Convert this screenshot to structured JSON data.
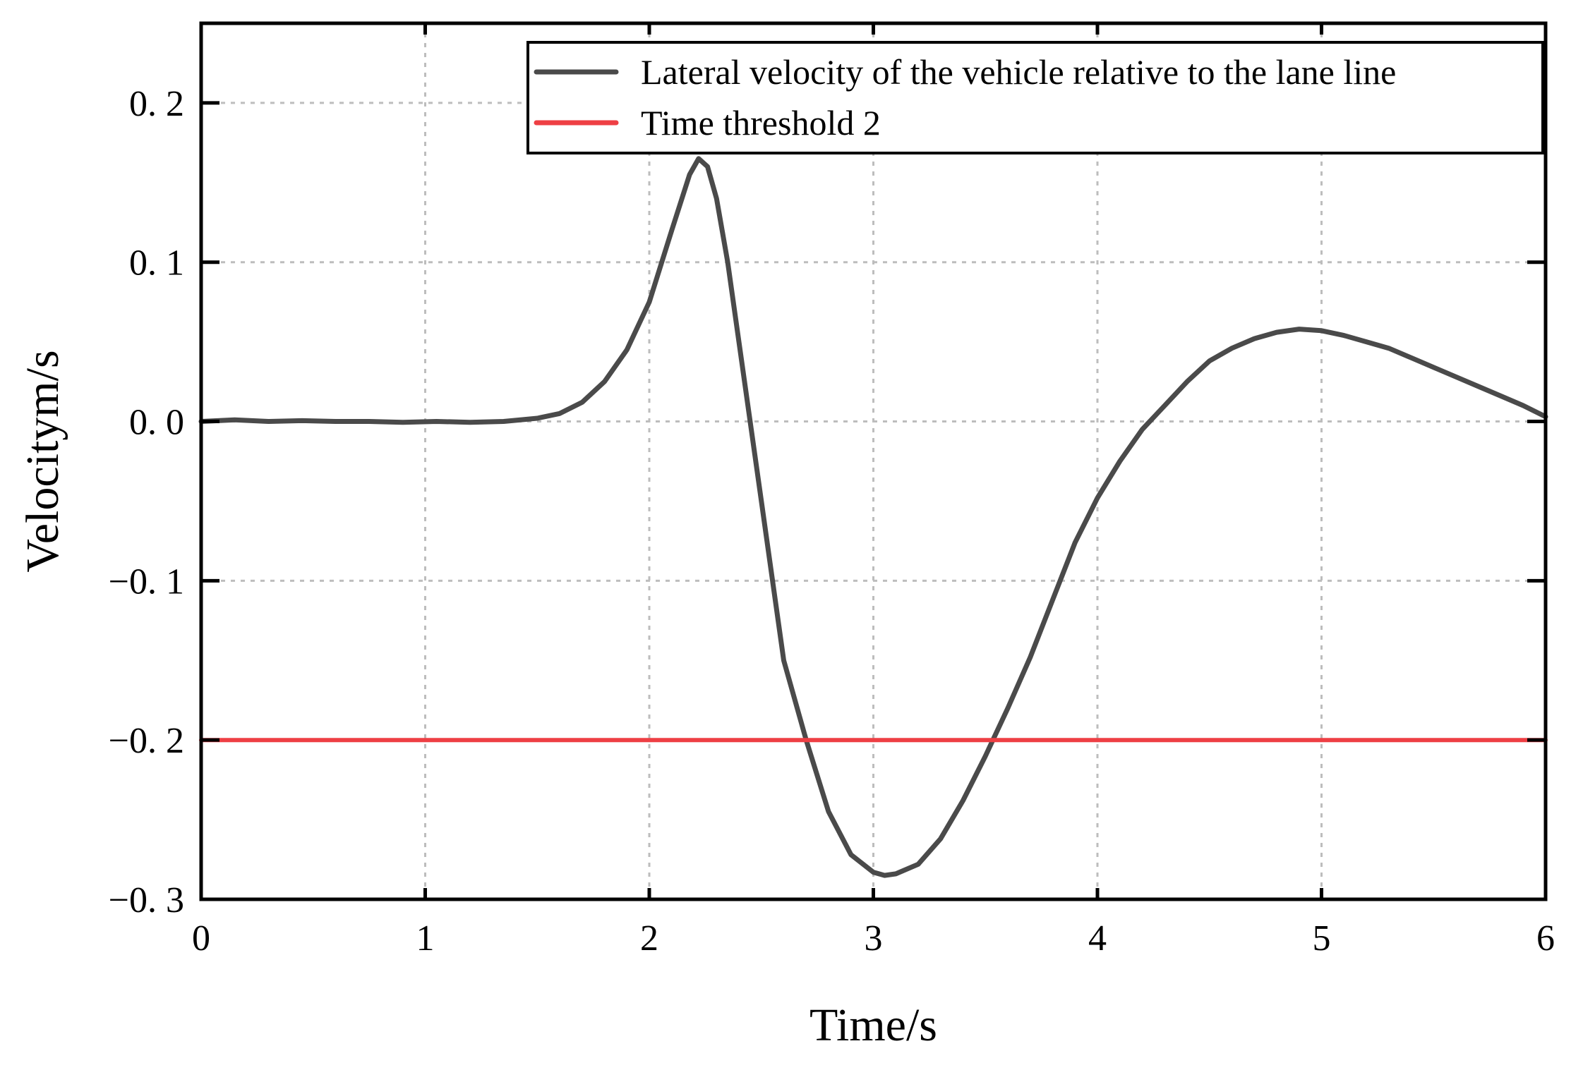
{
  "chart_data": {
    "type": "line",
    "title": "",
    "xlabel": "Time/s",
    "ylabel": "Velocitym/s",
    "xlim": [
      0,
      6
    ],
    "ylim": [
      -0.3,
      0.25
    ],
    "xticks": [
      0,
      1,
      2,
      3,
      4,
      5,
      6
    ],
    "xtick_labels": [
      "0",
      "1",
      "2",
      "3",
      "4",
      "5",
      "6"
    ],
    "yticks": [
      -0.3,
      -0.2,
      -0.1,
      0.0,
      0.1,
      0.2
    ],
    "ytick_labels": [
      "−0. 3",
      "−0. 2",
      "−0. 1",
      "0. 0",
      "0. 1",
      "0. 2"
    ],
    "grid": true,
    "legend_position": "top-right",
    "series": [
      {
        "name": "Lateral velocity of the vehicle relative to the lane line",
        "color": "#4a4a4a",
        "x": [
          0,
          0.15,
          0.3,
          0.45,
          0.6,
          0.75,
          0.9,
          1.05,
          1.2,
          1.35,
          1.5,
          1.6,
          1.7,
          1.8,
          1.9,
          2.0,
          2.1,
          2.18,
          2.22,
          2.26,
          2.3,
          2.35,
          2.4,
          2.5,
          2.6,
          2.7,
          2.8,
          2.9,
          3.0,
          3.05,
          3.1,
          3.2,
          3.3,
          3.4,
          3.5,
          3.6,
          3.7,
          3.8,
          3.9,
          4.0,
          4.1,
          4.2,
          4.3,
          4.4,
          4.5,
          4.6,
          4.7,
          4.8,
          4.9,
          5.0,
          5.1,
          5.2,
          5.3,
          5.4,
          5.5,
          5.6,
          5.7,
          5.8,
          5.9,
          6.0
        ],
        "y": [
          0.0,
          0.001,
          0.0,
          0.0005,
          0.0,
          0.0,
          -0.0005,
          0.0,
          -0.0005,
          0.0,
          0.002,
          0.005,
          0.012,
          0.025,
          0.045,
          0.075,
          0.12,
          0.155,
          0.165,
          0.16,
          0.14,
          0.1,
          0.05,
          -0.05,
          -0.15,
          -0.2,
          -0.245,
          -0.272,
          -0.283,
          -0.285,
          -0.284,
          -0.278,
          -0.262,
          -0.238,
          -0.21,
          -0.18,
          -0.148,
          -0.112,
          -0.076,
          -0.048,
          -0.025,
          -0.005,
          0.01,
          0.025,
          0.038,
          0.046,
          0.052,
          0.056,
          0.058,
          0.057,
          0.054,
          0.05,
          0.046,
          0.04,
          0.034,
          0.028,
          0.022,
          0.016,
          0.01,
          0.003
        ]
      },
      {
        "name": "Time threshold 2",
        "color": "#ee3f44",
        "x": [
          0,
          6
        ],
        "y": [
          -0.2,
          -0.2
        ]
      }
    ]
  }
}
